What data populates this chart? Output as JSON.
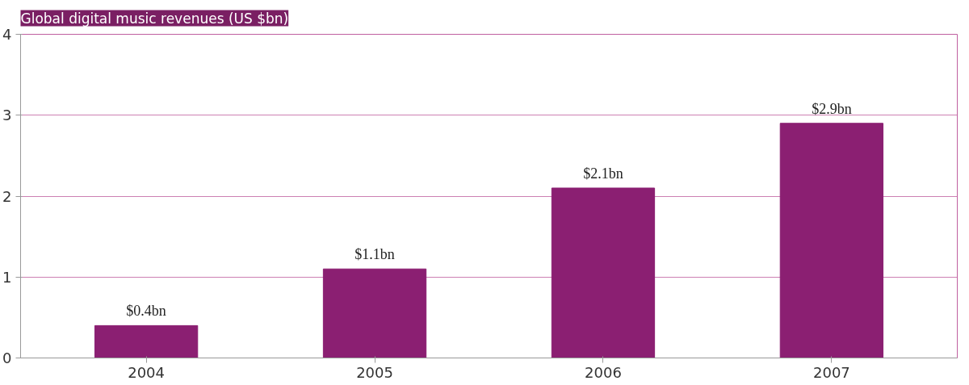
{
  "chart_data": {
    "type": "bar",
    "title": "Global digital music revenues (US $bn)",
    "categories": [
      "2004",
      "2005",
      "2006",
      "2007"
    ],
    "values": [
      0.4,
      1.1,
      2.1,
      2.9
    ],
    "value_labels": [
      "$0.4bn",
      "$1.1bn",
      "$2.1bn",
      "$2.9bn"
    ],
    "color": "#8b1f72",
    "ylim": [
      0,
      4
    ],
    "yticks": [
      0,
      1,
      2,
      3,
      4
    ],
    "grid": "y"
  }
}
